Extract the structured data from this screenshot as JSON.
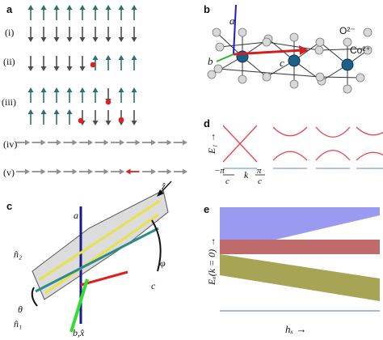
{
  "panels": {
    "a": {
      "label": "a",
      "rows": [
        {
          "label": "(i)"
        },
        {
          "label": "(ii)"
        },
        {
          "label": "(iii)"
        },
        {
          "label": "(iv)"
        },
        {
          "label": "(v)"
        }
      ]
    },
    "b": {
      "label": "b",
      "axis_a": "a",
      "axis_b": "b",
      "axis_c": "c",
      "anion": "O²⁻",
      "cation": "Co²⁺"
    },
    "c": {
      "label": "c",
      "axis_a": "a",
      "axis_c": "c",
      "axis_bx": "b,x̂",
      "z_hat": "ẑ",
      "n1": "n̂₁",
      "n2": "n̂₂",
      "theta": "θ",
      "phi": "φ"
    },
    "d": {
      "label": "d",
      "ylabel": "E₁ →",
      "xlabel_left": "−π/c",
      "xlabel_mid": "k",
      "xlabel_right": "π/c",
      "neg_pi": "−π",
      "pi": "π",
      "c": "c"
    },
    "e": {
      "label": "e",
      "ylabel": "Eₓ(k = 0) →",
      "xlabel": "hₓ →"
    }
  },
  "colors": {
    "spin_up": "#2e6f74",
    "spin_down": "#4d4d4d",
    "spin_h": "#8f8f8f",
    "defect": "#e02020",
    "band": "#e8434f",
    "blue_band": "#9a9af0",
    "red_band": "#c06b6b",
    "olive_band": "#a8a456"
  }
}
